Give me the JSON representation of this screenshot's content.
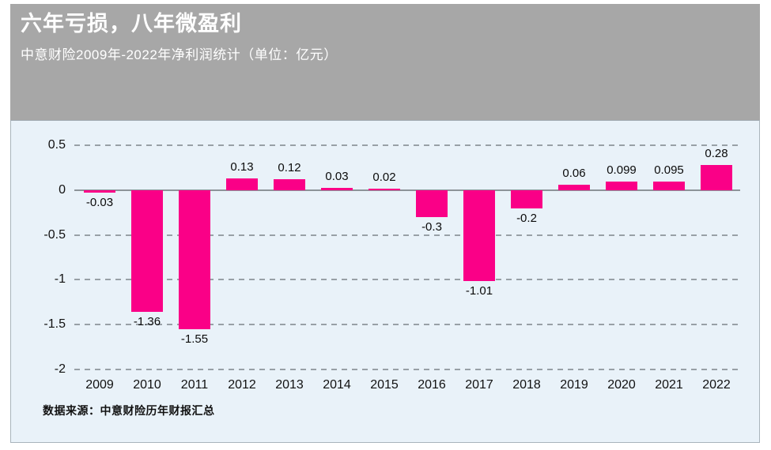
{
  "header": {
    "title": "六年亏损，八年微盈利",
    "subtitle": "中意财险2009年-2022年净利润统计（单位：亿元）"
  },
  "footer": {
    "source": "数据来源：中意财险历年财报汇总"
  },
  "colors": {
    "bar": "#FA0087",
    "header_bg": "#A7A7A7",
    "panel_bg": "#E9F2F9",
    "grid": "#98A0A6",
    "zero_line": "#8D9499"
  },
  "chart_data": {
    "type": "bar",
    "title": "六年亏损，八年微盈利",
    "subtitle": "中意财险2009年-2022年净利润统计（单位：亿元）",
    "categories": [
      "2009",
      "2010",
      "2011",
      "2012",
      "2013",
      "2014",
      "2015",
      "2016",
      "2017",
      "2018",
      "2019",
      "2020",
      "2021",
      "2022"
    ],
    "values": [
      -0.03,
      -1.36,
      -1.55,
      0.13,
      0.12,
      0.03,
      0.02,
      -0.3,
      -1.01,
      -0.2,
      0.06,
      0.099,
      0.095,
      0.28
    ],
    "value_labels": [
      "-0.03",
      "-1.36",
      "-1.55",
      "0.13",
      "0.12",
      "0.03",
      "0.02",
      "-0.3",
      "-1.01",
      "-0.2",
      "0.06",
      "0.099",
      "0.095",
      "0.28"
    ],
    "xlabel": "",
    "ylabel": "",
    "unit": "亿元",
    "ylim": [
      -2,
      0.5
    ],
    "y_ticks": [
      "0.5",
      "0",
      "-0.5",
      "-1",
      "-1.5",
      "-2"
    ],
    "grid": "horizontal-dashed",
    "legend": "none",
    "bar_color": "#FA0087"
  }
}
